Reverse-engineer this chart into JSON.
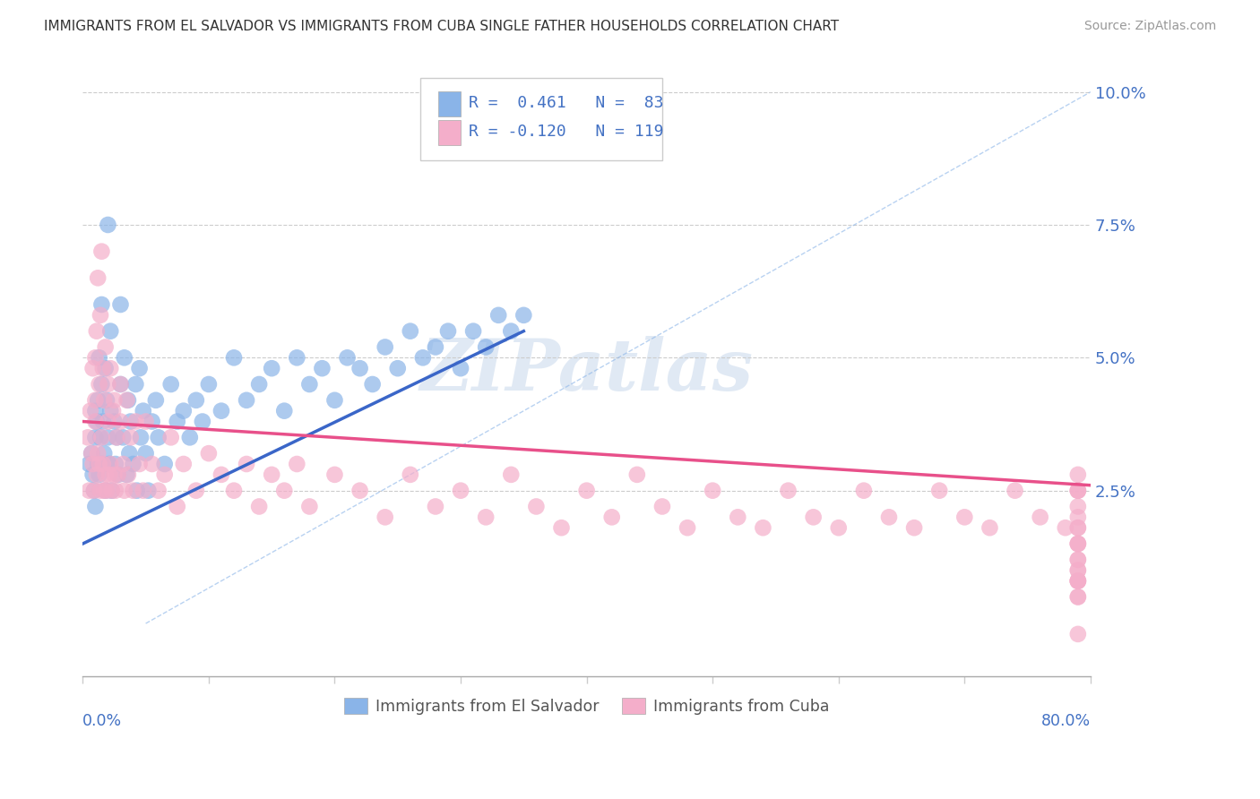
{
  "title": "IMMIGRANTS FROM EL SALVADOR VS IMMIGRANTS FROM CUBA SINGLE FATHER HOUSEHOLDS CORRELATION CHART",
  "source": "Source: ZipAtlas.com",
  "legend_label1": "Immigrants from El Salvador",
  "legend_label2": "Immigrants from Cuba",
  "color_salvador": "#8AB4E8",
  "color_cuba": "#F4AECA",
  "color_trend_salvador": "#3A66C8",
  "color_trend_cuba": "#E8508A",
  "color_diag": "#8AB4E8",
  "R_salvador": 0.461,
  "N_salvador": 83,
  "R_cuba": -0.12,
  "N_cuba": 119,
  "xlim": [
    0.0,
    0.8
  ],
  "ylim": [
    -0.01,
    0.105
  ],
  "yticks": [
    0.0,
    0.025,
    0.05,
    0.075,
    0.1
  ],
  "ytick_labels": [
    "",
    "2.5%",
    "5.0%",
    "7.5%",
    "10.0%"
  ],
  "salvador_x": [
    0.005,
    0.007,
    0.008,
    0.009,
    0.01,
    0.01,
    0.01,
    0.011,
    0.012,
    0.012,
    0.013,
    0.013,
    0.014,
    0.015,
    0.015,
    0.015,
    0.016,
    0.017,
    0.018,
    0.018,
    0.019,
    0.02,
    0.02,
    0.021,
    0.022,
    0.022,
    0.023,
    0.025,
    0.026,
    0.027,
    0.028,
    0.03,
    0.03,
    0.032,
    0.033,
    0.035,
    0.036,
    0.037,
    0.038,
    0.04,
    0.042,
    0.043,
    0.045,
    0.046,
    0.048,
    0.05,
    0.052,
    0.055,
    0.058,
    0.06,
    0.065,
    0.07,
    0.075,
    0.08,
    0.085,
    0.09,
    0.095,
    0.1,
    0.11,
    0.12,
    0.13,
    0.14,
    0.15,
    0.16,
    0.17,
    0.18,
    0.19,
    0.2,
    0.21,
    0.22,
    0.23,
    0.24,
    0.25,
    0.26,
    0.27,
    0.28,
    0.29,
    0.3,
    0.31,
    0.32,
    0.33,
    0.34,
    0.35
  ],
  "salvador_y": [
    0.03,
    0.032,
    0.028,
    0.025,
    0.035,
    0.04,
    0.022,
    0.038,
    0.042,
    0.03,
    0.028,
    0.05,
    0.035,
    0.045,
    0.03,
    0.06,
    0.038,
    0.032,
    0.048,
    0.025,
    0.042,
    0.035,
    0.075,
    0.03,
    0.04,
    0.055,
    0.025,
    0.038,
    0.03,
    0.035,
    0.028,
    0.045,
    0.06,
    0.035,
    0.05,
    0.028,
    0.042,
    0.032,
    0.038,
    0.03,
    0.045,
    0.025,
    0.048,
    0.035,
    0.04,
    0.032,
    0.025,
    0.038,
    0.042,
    0.035,
    0.03,
    0.045,
    0.038,
    0.04,
    0.035,
    0.042,
    0.038,
    0.045,
    0.04,
    0.05,
    0.042,
    0.045,
    0.048,
    0.04,
    0.05,
    0.045,
    0.048,
    0.042,
    0.05,
    0.048,
    0.045,
    0.052,
    0.048,
    0.055,
    0.05,
    0.052,
    0.055,
    0.048,
    0.055,
    0.052,
    0.058,
    0.055,
    0.058
  ],
  "cuba_x": [
    0.004,
    0.005,
    0.006,
    0.007,
    0.008,
    0.008,
    0.009,
    0.01,
    0.01,
    0.01,
    0.011,
    0.011,
    0.012,
    0.012,
    0.013,
    0.013,
    0.014,
    0.014,
    0.015,
    0.015,
    0.016,
    0.016,
    0.017,
    0.017,
    0.018,
    0.018,
    0.019,
    0.02,
    0.02,
    0.021,
    0.022,
    0.022,
    0.023,
    0.024,
    0.025,
    0.025,
    0.026,
    0.027,
    0.028,
    0.03,
    0.03,
    0.032,
    0.033,
    0.035,
    0.036,
    0.038,
    0.04,
    0.042,
    0.045,
    0.048,
    0.05,
    0.055,
    0.06,
    0.065,
    0.07,
    0.075,
    0.08,
    0.09,
    0.1,
    0.11,
    0.12,
    0.13,
    0.14,
    0.15,
    0.16,
    0.17,
    0.18,
    0.2,
    0.22,
    0.24,
    0.26,
    0.28,
    0.3,
    0.32,
    0.34,
    0.36,
    0.38,
    0.4,
    0.42,
    0.44,
    0.46,
    0.48,
    0.5,
    0.52,
    0.54,
    0.56,
    0.58,
    0.6,
    0.62,
    0.64,
    0.66,
    0.68,
    0.7,
    0.72,
    0.74,
    0.76,
    0.78,
    0.79,
    0.79,
    0.79,
    0.79,
    0.79,
    0.79,
    0.79,
    0.79,
    0.79,
    0.79,
    0.79,
    0.79,
    0.79,
    0.79,
    0.79,
    0.79,
    0.79,
    0.79,
    0.79,
    0.79,
    0.79,
    0.79
  ],
  "cuba_y": [
    0.035,
    0.025,
    0.04,
    0.032,
    0.03,
    0.048,
    0.025,
    0.038,
    0.042,
    0.05,
    0.028,
    0.055,
    0.032,
    0.065,
    0.03,
    0.045,
    0.025,
    0.058,
    0.035,
    0.07,
    0.03,
    0.048,
    0.025,
    0.042,
    0.028,
    0.052,
    0.025,
    0.038,
    0.045,
    0.028,
    0.03,
    0.048,
    0.025,
    0.04,
    0.028,
    0.042,
    0.025,
    0.035,
    0.028,
    0.038,
    0.045,
    0.03,
    0.025,
    0.042,
    0.028,
    0.035,
    0.025,
    0.038,
    0.03,
    0.025,
    0.038,
    0.03,
    0.025,
    0.028,
    0.035,
    0.022,
    0.03,
    0.025,
    0.032,
    0.028,
    0.025,
    0.03,
    0.022,
    0.028,
    0.025,
    0.03,
    0.022,
    0.028,
    0.025,
    0.02,
    0.028,
    0.022,
    0.025,
    0.02,
    0.028,
    0.022,
    0.018,
    0.025,
    0.02,
    0.028,
    0.022,
    0.018,
    0.025,
    0.02,
    0.018,
    0.025,
    0.02,
    0.018,
    0.025,
    0.02,
    0.018,
    0.025,
    0.02,
    0.018,
    0.025,
    0.02,
    0.018,
    0.008,
    -0.002,
    0.012,
    0.025,
    0.018,
    0.008,
    0.028,
    0.018,
    0.01,
    0.025,
    0.015,
    0.008,
    0.025,
    0.015,
    0.008,
    0.022,
    0.012,
    0.005,
    0.02,
    0.01,
    0.005,
    0.015
  ]
}
